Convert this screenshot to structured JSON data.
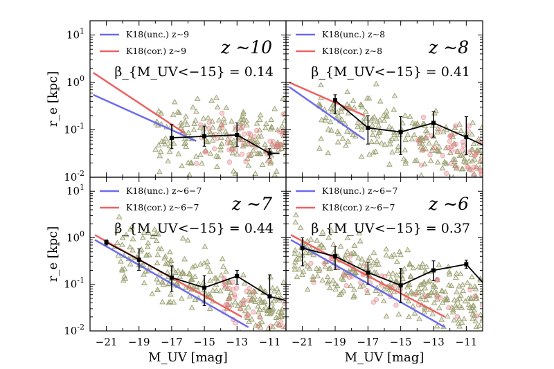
{
  "chart_data": [
    {
      "type": "scatter",
      "panel": "top-left",
      "redshift_label": "z ∼10",
      "beta_label": "β_{M_UV<−15} = 0.14",
      "legend": [
        "K18(unc.) z∼9",
        "K18(cor.) z∼9"
      ],
      "k18_unc": {
        "x": [
          -21.8,
          -15.5
        ],
        "y": [
          0.55,
          0.058
        ]
      },
      "k18_cor": {
        "x": [
          -21.8,
          -16.2
        ],
        "y": [
          1.6,
          0.085
        ]
      },
      "median": {
        "x": [
          -17,
          -15,
          -13,
          -11
        ],
        "y": [
          0.068,
          0.073,
          0.078,
          0.032
        ],
        "err_lo": [
          0.04,
          0.045,
          0.045,
          0.025
        ],
        "err_hi": [
          0.13,
          0.12,
          0.14,
          0.04
        ],
        "tail": {
          "x": -10.4,
          "y": 0.032
        }
      },
      "scatter": "triangles and circles, roughly M_UV -18 to -10, r_e 0.01 to 0.5"
    },
    {
      "type": "scatter",
      "panel": "top-right",
      "redshift_label": "z ∼8",
      "beta_label": "β_{M_UV<−15} = 0.41",
      "legend": [
        "K18(unc.) z∼8",
        "K18(cor.) z∼8"
      ],
      "k18_unc": {
        "x": [
          -21.8,
          -17.2
        ],
        "y": [
          0.8,
          0.062
        ]
      },
      "k18_cor": {
        "x": [
          -21.8,
          -17.2
        ],
        "y": [
          1.0,
          0.2
        ]
      },
      "median": {
        "x": [
          -19,
          -17,
          -15,
          -13,
          -11
        ],
        "y": [
          0.42,
          0.11,
          0.09,
          0.14,
          0.07
        ],
        "err_lo": [
          0.22,
          0.05,
          0.03,
          0.07,
          0.03
        ],
        "err_hi": [
          0.55,
          0.2,
          0.19,
          0.24,
          0.19
        ],
        "tail": {
          "x": -10.0,
          "y": 0.048
        }
      },
      "scatter": "triangles and circles, roughly M_UV -20 to -10, r_e 0.01 to 0.6"
    },
    {
      "type": "scatter",
      "panel": "bottom-left",
      "redshift_label": "z ∼7",
      "beta_label": "β_{M_UV<−15} = 0.44",
      "legend": [
        "K18(unc.) z∼6−7",
        "K18(cor.) z∼6−7"
      ],
      "k18_unc": {
        "x": [
          -21.7,
          -12.3
        ],
        "y": [
          0.9,
          0.012
        ]
      },
      "k18_cor": {
        "x": [
          -21.7,
          -12.7
        ],
        "y": [
          1.15,
          0.02
        ]
      },
      "median": {
        "x": [
          -21,
          -19,
          -17,
          -15,
          -13,
          -11
        ],
        "y": [
          0.8,
          0.34,
          0.14,
          0.085,
          0.15,
          0.055
        ],
        "err_lo": [
          0.7,
          0.2,
          0.07,
          0.035,
          0.1,
          0.03
        ],
        "err_hi": [
          0.9,
          0.58,
          0.25,
          0.155,
          0.2,
          0.16
        ],
        "tail": {
          "x": -10.0,
          "y": 0.045
        }
      },
      "scatter": "triangles and circles, roughly M_UV -20 to -10, r_e 0.01 to 0.8"
    },
    {
      "type": "scatter",
      "panel": "bottom-right",
      "redshift_label": "z ∼6",
      "beta_label": "β_{M_UV<−15} = 0.37",
      "legend": [
        "K18(unc.) z∼6−7",
        "K18(cor.) z∼6−7"
      ],
      "k18_unc": {
        "x": [
          -21.7,
          -12.3
        ],
        "y": [
          0.9,
          0.012
        ]
      },
      "k18_cor": {
        "x": [
          -21.7,
          -12.3
        ],
        "y": [
          1.15,
          0.02
        ]
      },
      "median": {
        "x": [
          -21,
          -19,
          -17,
          -15,
          -13,
          -11
        ],
        "y": [
          0.6,
          0.4,
          0.18,
          0.095,
          0.2,
          0.27
        ],
        "err_lo": [
          0.25,
          0.21,
          0.1,
          0.04,
          0.12,
          0.22
        ],
        "err_hi": [
          1.0,
          0.65,
          0.3,
          0.22,
          0.32,
          0.33
        ],
        "tail": {
          "x": -10.0,
          "y": 0.11
        }
      },
      "scatter": "triangles and circles, roughly M_UV -21 to -10, r_e 0.01 to 1.5"
    }
  ],
  "axes": {
    "xlabel": "M_UV [mag]",
    "ylabel": "r_e [kpc]",
    "xlim": [
      -22,
      -10
    ],
    "ylim": [
      0.01,
      20
    ],
    "yscale": "log",
    "xticks": [
      "−21",
      "−19",
      "−17",
      "−15",
      "−13",
      "−11"
    ],
    "yticks": [
      "10^-2",
      "10^-1",
      "10^0",
      "10^1"
    ]
  },
  "colors": {
    "unc": "#6b6bef",
    "cor": "#f06060",
    "triangle": "#9aa070",
    "circle": "#e07c80",
    "median": "#000000"
  }
}
